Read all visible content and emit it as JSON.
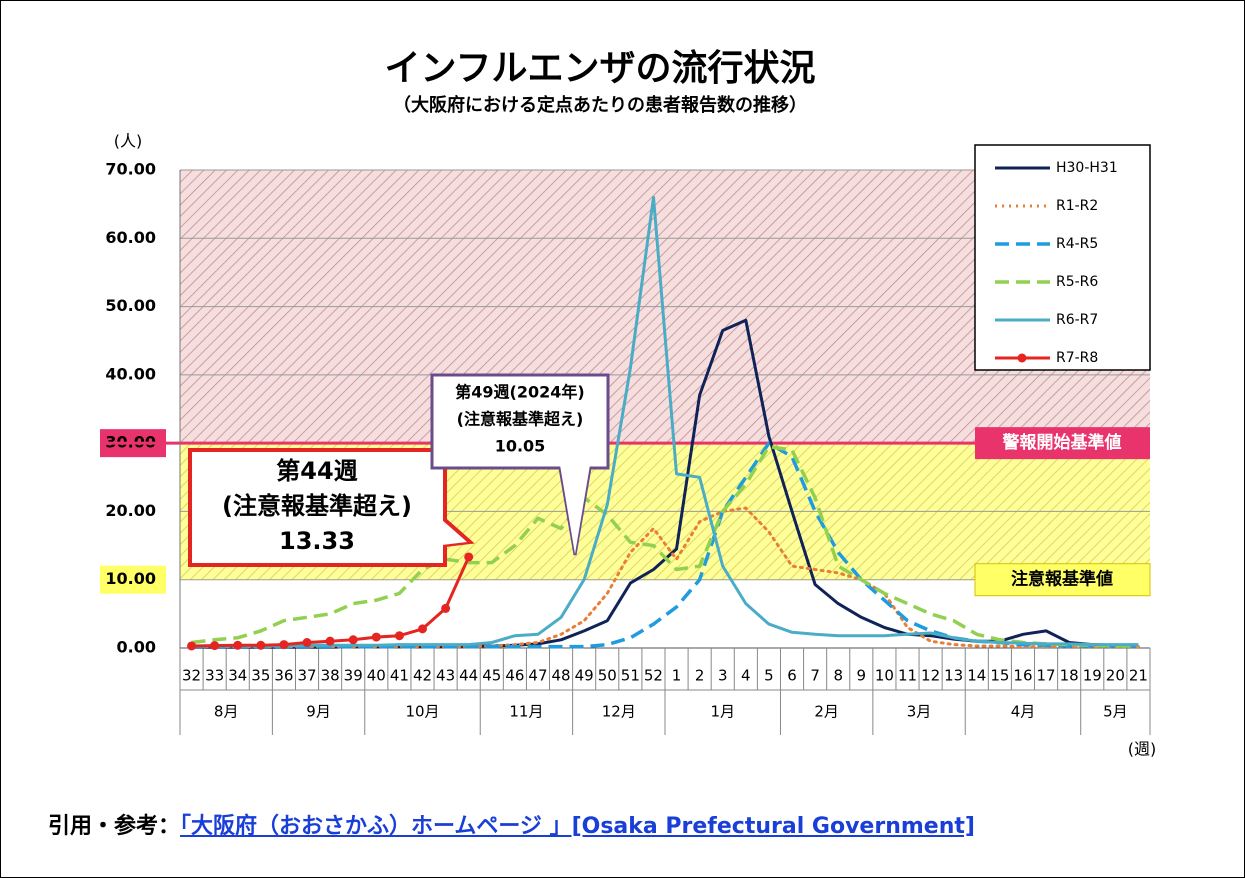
{
  "chart_data": {
    "type": "line",
    "title": "インフルエンザの流行状況",
    "subtitle": "（大阪府における定点あたりの患者報告数の推移）",
    "y_unit": "(人)",
    "x_unit": "(週)",
    "categories": [
      "32",
      "33",
      "34",
      "35",
      "36",
      "37",
      "38",
      "39",
      "40",
      "41",
      "42",
      "43",
      "44",
      "45",
      "46",
      "47",
      "48",
      "49",
      "50",
      "51",
      "52",
      "1",
      "2",
      "3",
      "4",
      "5",
      "6",
      "7",
      "8",
      "9",
      "10",
      "11",
      "12",
      "13",
      "14",
      "15",
      "16",
      "17",
      "18",
      "19",
      "20",
      "21"
    ],
    "months": [
      {
        "label": "8月",
        "from": "32"
      },
      {
        "label": "9月",
        "from": "36"
      },
      {
        "label": "10月",
        "from": "40"
      },
      {
        "label": "11月",
        "from": "45"
      },
      {
        "label": "12月",
        "from": "49"
      },
      {
        "label": "1月",
        "from": "1"
      },
      {
        "label": "2月",
        "from": "6"
      },
      {
        "label": "3月",
        "from": "10"
      },
      {
        "label": "4月",
        "from": "14"
      },
      {
        "label": "5月",
        "from": "19"
      }
    ],
    "ylim": [
      0,
      70
    ],
    "yticks": [
      {
        "value": 0,
        "label": "0.00"
      },
      {
        "value": 10,
        "label": "10.00"
      },
      {
        "value": 20,
        "label": "20.00"
      },
      {
        "value": 30,
        "label": "30.00"
      },
      {
        "value": 40,
        "label": "40.00"
      },
      {
        "value": 50,
        "label": "50.00"
      },
      {
        "value": 60,
        "label": "60.00"
      },
      {
        "value": 70,
        "label": "70.00"
      }
    ],
    "grid": true,
    "legend": "top-right",
    "bands": [
      {
        "from": 30,
        "to": 70,
        "label": "警報開始基準値",
        "color": "#e8336d"
      },
      {
        "from": 10,
        "to": 30,
        "label": "注意報基準値",
        "color": "#ffff66"
      }
    ],
    "series": [
      {
        "name": "H30-H31",
        "color": "#102358",
        "style": "solid",
        "values": [
          0.1,
          0.1,
          0.1,
          0.1,
          0.1,
          0.1,
          0.1,
          0.2,
          0.2,
          0.2,
          0.2,
          0.2,
          0.3,
          0.3,
          0.4,
          0.6,
          1.2,
          2.5,
          4,
          9.5,
          11.5,
          14.5,
          37,
          46.5,
          48,
          31,
          20,
          9.3,
          6.5,
          4.5,
          3,
          2,
          1.8,
          1.3,
          1,
          1,
          2,
          2.5,
          0.8,
          0.5,
          0.4,
          0.4
        ]
      },
      {
        "name": "R1-R2",
        "color": "#e97f35",
        "style": "dotted",
        "values": [
          0.2,
          0.2,
          0.2,
          0.2,
          0.2,
          0.2,
          0.2,
          0.2,
          0.2,
          0.2,
          0.2,
          0.2,
          0.2,
          0.3,
          0.5,
          0.8,
          2,
          4,
          8,
          14,
          17.5,
          13,
          18.5,
          20,
          20.5,
          17,
          12,
          11.5,
          11,
          10,
          8,
          3,
          1,
          0.5,
          0.3,
          0.3,
          0.2,
          0.2,
          0.2,
          0.2,
          0.2,
          0.2
        ]
      },
      {
        "name": "R4-R5",
        "color": "#1f9be0",
        "style": "dashed",
        "values": [
          0.2,
          0.2,
          0.2,
          0.2,
          0.2,
          0.2,
          0.2,
          0.2,
          0.2,
          0.2,
          0.2,
          0.2,
          0.2,
          0.2,
          0.2,
          0.2,
          0.2,
          0.2,
          0.5,
          1.5,
          3.5,
          6,
          10,
          20,
          25,
          30,
          28,
          20,
          14,
          10,
          7,
          4,
          2.5,
          1.5,
          1,
          0.8,
          0.5,
          0.4,
          0.3,
          0.3,
          0.3,
          0.3
        ]
      },
      {
        "name": "R5-R6",
        "color": "#92d050",
        "style": "dashed",
        "values": [
          0.8,
          1.2,
          1.5,
          2.5,
          4,
          4.5,
          5,
          6.5,
          7,
          8,
          11.5,
          13,
          12.5,
          12.5,
          15,
          19,
          17.5,
          22,
          19.5,
          15.5,
          15,
          11.5,
          12,
          20,
          24,
          29.5,
          29,
          22,
          12,
          10,
          8,
          6.5,
          5,
          4,
          2,
          1.2,
          0.8,
          0.6,
          0.5,
          0.4,
          0.3,
          0.3
        ]
      },
      {
        "name": "R6-R7",
        "color": "#4bacc6",
        "style": "solid",
        "values": [
          0.3,
          0.3,
          0.3,
          0.3,
          0.3,
          0.4,
          0.4,
          0.4,
          0.4,
          0.5,
          0.5,
          0.5,
          0.5,
          0.8,
          1.8,
          2,
          4.5,
          10.05,
          21,
          41,
          66,
          25.5,
          25,
          12,
          6.5,
          3.5,
          2.3,
          2,
          1.8,
          1.8,
          1.8,
          2,
          2.2,
          1.5,
          1,
          0.8,
          0.7,
          0.6,
          0.6,
          0.5,
          0.5,
          0.5
        ]
      },
      {
        "name": "R7-R8",
        "color": "#e52521",
        "style": "solid",
        "marker": true,
        "values": [
          0.3,
          0.35,
          0.4,
          0.4,
          0.5,
          0.8,
          1.0,
          1.2,
          1.6,
          1.8,
          2.8,
          5.8,
          13.33,
          null,
          null,
          null,
          null,
          null,
          null,
          null,
          null,
          null,
          null,
          null,
          null,
          null,
          null,
          null,
          null,
          null,
          null,
          null,
          null,
          null,
          null,
          null,
          null,
          null,
          null,
          null,
          null,
          null
        ]
      }
    ],
    "annotations": [
      {
        "lines": [
          "第44週",
          "(注意報基準超え)",
          "13.33"
        ],
        "color": "#e52521"
      },
      {
        "lines": [
          "第49週(2024年)",
          "(注意報基準超え)",
          "10.05"
        ],
        "color": "#6a4c8c"
      }
    ]
  },
  "citation": {
    "label": "引用・参考：",
    "link": "「大阪府（おおさかふ）ホームページ 」[Osaka Prefectural Government]"
  }
}
